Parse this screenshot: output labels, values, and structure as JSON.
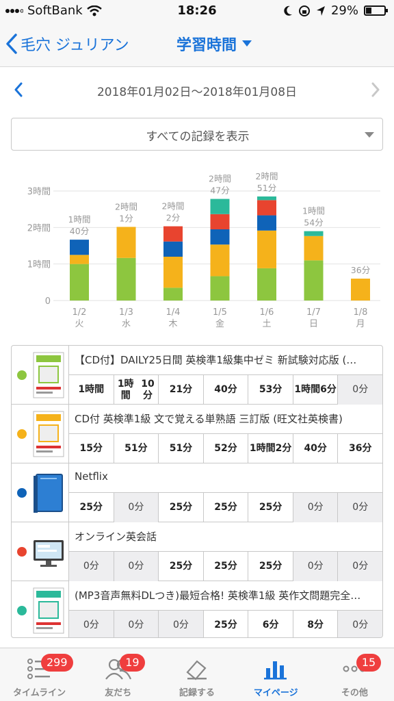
{
  "status_bar": {
    "carrier": "SoftBank",
    "time": "18:26",
    "battery": "29%"
  },
  "nav": {
    "back_label": "毛穴 ジュリアン",
    "title": "学習時間"
  },
  "date_range": "2018年01月02日〜2018年01月08日",
  "filter": {
    "selected": "すべての記録を表示"
  },
  "colors": {
    "accent": "#1a73d9",
    "green": "#8dc63f",
    "orange": "#f5b21b",
    "blue": "#0f63b8",
    "red": "#e8442f",
    "teal": "#2bb99a",
    "badge": "#ef3e3e"
  },
  "chart_data": {
    "type": "bar",
    "stacked": true,
    "y_tick_labels": [
      "0",
      "1時間",
      "2時間",
      "3時間"
    ],
    "ylim": [
      0,
      180
    ],
    "grid": true,
    "categories": [
      {
        "date": "1/2",
        "day": "火"
      },
      {
        "date": "1/3",
        "day": "水"
      },
      {
        "date": "1/4",
        "day": "木"
      },
      {
        "date": "1/5",
        "day": "金"
      },
      {
        "date": "1/6",
        "day": "土"
      },
      {
        "date": "1/7",
        "day": "日"
      },
      {
        "date": "1/8",
        "day": "月"
      }
    ],
    "totals": [
      [
        "1時間",
        "40分"
      ],
      [
        "2時間",
        "1分"
      ],
      [
        "2時間",
        "2分"
      ],
      [
        "2時間",
        "47分"
      ],
      [
        "2時間",
        "51分"
      ],
      [
        "1時間",
        "54分"
      ],
      [
        "",
        "36分"
      ]
    ],
    "series": [
      {
        "color": "#8dc63f",
        "values": [
          60,
          70,
          21,
          40,
          53,
          66,
          0
        ]
      },
      {
        "color": "#f5b21b",
        "values": [
          15,
          51,
          51,
          52,
          62,
          40,
          36
        ]
      },
      {
        "color": "#0f63b8",
        "values": [
          25,
          0,
          25,
          25,
          25,
          0,
          0
        ]
      },
      {
        "color": "#e8442f",
        "values": [
          0,
          0,
          25,
          25,
          25,
          0,
          0
        ]
      },
      {
        "color": "#2bb99a",
        "values": [
          0,
          0,
          0,
          25,
          6,
          8,
          0
        ]
      }
    ]
  },
  "records": [
    {
      "name": "【CD付】DAILY25日間 英検準1級集中ゼミ 新試験対応版 (…",
      "color": "#8dc63f",
      "thumb": "book-icon",
      "cells": [
        [
          "1時間"
        ],
        [
          "1時間",
          "10分"
        ],
        [
          "21分"
        ],
        [
          "40分"
        ],
        [
          "53分"
        ],
        [
          "1時間",
          "6分"
        ],
        [
          "0分"
        ]
      ]
    },
    {
      "name": "CD付 英検準1級 文で覚える単熟語 三訂版 (旺文社英検書)",
      "color": "#f5b21b",
      "thumb": "book-icon",
      "cells": [
        [
          "15分"
        ],
        [
          "51分"
        ],
        [
          "51分"
        ],
        [
          "52分"
        ],
        [
          "1時間",
          "2分"
        ],
        [
          "40分"
        ],
        [
          "36分"
        ]
      ]
    },
    {
      "name": "Netflix",
      "color": "#0f63b8",
      "thumb": "blue-book-icon",
      "cells": [
        [
          "25分"
        ],
        [
          "0分"
        ],
        [
          "25分"
        ],
        [
          "25分"
        ],
        [
          "25分"
        ],
        [
          "0分"
        ],
        [
          "0分"
        ]
      ]
    },
    {
      "name": "オンライン英会話",
      "color": "#e8442f",
      "thumb": "monitor-icon",
      "cells": [
        [
          "0分"
        ],
        [
          "0分"
        ],
        [
          "25分"
        ],
        [
          "25分"
        ],
        [
          "25分"
        ],
        [
          "0分"
        ],
        [
          "0分"
        ]
      ]
    },
    {
      "name": "(MP3音声無料DLつき)最短合格! 英検準1級 英作文問題完全…",
      "color": "#2bb99a",
      "thumb": "book-icon",
      "cells": [
        [
          "0分"
        ],
        [
          "0分"
        ],
        [
          "0分"
        ],
        [
          "25分"
        ],
        [
          "6分"
        ],
        [
          "8分"
        ],
        [
          "0分"
        ]
      ]
    }
  ],
  "tabs": [
    {
      "label": "タイムライン",
      "icon": "list-icon",
      "badge": "299",
      "active": false
    },
    {
      "label": "友だち",
      "icon": "friends-icon",
      "badge": "19",
      "active": false
    },
    {
      "label": "記録する",
      "icon": "pencil-icon",
      "badge": "",
      "active": false
    },
    {
      "label": "マイページ",
      "icon": "chart-icon",
      "badge": "",
      "active": true
    },
    {
      "label": "その他",
      "icon": "more-icon",
      "badge": "15",
      "active": false
    }
  ]
}
